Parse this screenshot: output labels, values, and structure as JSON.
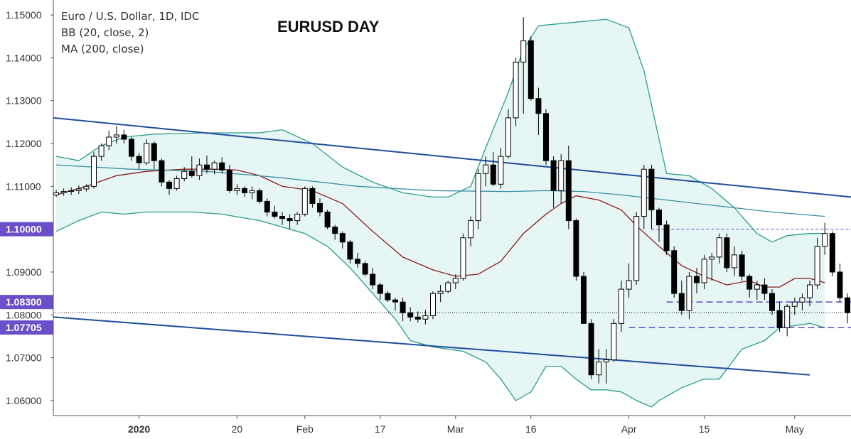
{
  "legend": {
    "symbol": "Euro / U.S. Dollar, 1D, IDC",
    "bb": "BB (20, close, 2)",
    "ma": "MA (200, close)"
  },
  "title": "EURUSD DAY",
  "colors": {
    "up_body": "#ffffff",
    "down_body": "#000000",
    "wick": "#000000",
    "bb_band": "#2a9d8f",
    "bb_fill": "#e6f6f4",
    "bb_basis": "#8b1a1a",
    "ma200": "#3a8fa8",
    "channel": "#1f4e9c",
    "level_line": "#5b4bc4",
    "badge": "#6a4fc8",
    "axis": "#555555"
  },
  "chart_data": {
    "type": "candlestick",
    "ylim": [
      1.0565,
      1.1535
    ],
    "y_ticks": [
      "1.15000",
      "1.14000",
      "1.13000",
      "1.12000",
      "1.11000",
      "1.10000",
      "1.09000",
      "1.08300",
      "1.08000",
      "1.07705",
      "1.07000",
      "1.06000"
    ],
    "highlighted_ticks": [
      "1.10000",
      "1.08300",
      "1.07705"
    ],
    "x_tick_labels": [
      {
        "label": "2020",
        "bar": 11,
        "bold": true
      },
      {
        "label": "20",
        "bar": 24
      },
      {
        "label": "Feb",
        "bar": 33
      },
      {
        "label": "17",
        "bar": 43
      },
      {
        "label": "Mar",
        "bar": 53
      },
      {
        "label": "16",
        "bar": 63
      },
      {
        "label": "Apr",
        "bar": 76
      },
      {
        "label": "15",
        "bar": 86
      },
      {
        "label": "May",
        "bar": 98
      }
    ],
    "candles": [
      [
        1.108,
        1.1092,
        1.1075,
        1.1085
      ],
      [
        1.1085,
        1.1095,
        1.1078,
        1.1088
      ],
      [
        1.1088,
        1.1098,
        1.108,
        1.109
      ],
      [
        1.109,
        1.1102,
        1.1082,
        1.1094
      ],
      [
        1.1094,
        1.1105,
        1.1088,
        1.11
      ],
      [
        1.11,
        1.118,
        1.1095,
        1.117
      ],
      [
        1.117,
        1.12,
        1.116,
        1.1195
      ],
      [
        1.1195,
        1.123,
        1.1185,
        1.1215
      ],
      [
        1.1215,
        1.124,
        1.12,
        1.122
      ],
      [
        1.122,
        1.1232,
        1.12,
        1.121
      ],
      [
        1.121,
        1.1215,
        1.116,
        1.117
      ],
      [
        1.117,
        1.1178,
        1.114,
        1.1155
      ],
      [
        1.1155,
        1.121,
        1.115,
        1.12
      ],
      [
        1.12,
        1.1205,
        1.114,
        1.116
      ],
      [
        1.116,
        1.1165,
        1.11,
        1.111
      ],
      [
        1.111,
        1.1115,
        1.108,
        1.1095
      ],
      [
        1.1095,
        1.1125,
        1.109,
        1.1118
      ],
      [
        1.1118,
        1.1145,
        1.1112,
        1.1135
      ],
      [
        1.1135,
        1.117,
        1.112,
        1.1125
      ],
      [
        1.1125,
        1.1165,
        1.1115,
        1.115
      ],
      [
        1.115,
        1.1172,
        1.113,
        1.114
      ],
      [
        1.114,
        1.116,
        1.1128,
        1.1155
      ],
      [
        1.1155,
        1.1168,
        1.113,
        1.1138
      ],
      [
        1.1138,
        1.115,
        1.1085,
        1.109
      ],
      [
        1.109,
        1.1105,
        1.108,
        1.1095
      ],
      [
        1.1095,
        1.11,
        1.1075,
        1.1085
      ],
      [
        1.1085,
        1.11,
        1.107,
        1.109
      ],
      [
        1.109,
        1.1095,
        1.106,
        1.1065
      ],
      [
        1.1065,
        1.1072,
        1.103,
        1.104
      ],
      [
        1.104,
        1.1055,
        1.1025,
        1.103
      ],
      [
        1.103,
        1.104,
        1.101,
        1.1025
      ],
      [
        1.1025,
        1.1035,
        1.1,
        1.102
      ],
      [
        1.102,
        1.104,
        1.101,
        1.1035
      ],
      [
        1.1035,
        1.11,
        1.103,
        1.1095
      ],
      [
        1.1095,
        1.11,
        1.105,
        1.106
      ],
      [
        1.106,
        1.1072,
        1.103,
        1.104
      ],
      [
        1.104,
        1.1045,
        1.1,
        1.1005
      ],
      [
        1.1005,
        1.101,
        1.0975,
        1.099
      ],
      [
        1.099,
        1.0995,
        1.0955,
        1.097
      ],
      [
        1.097,
        1.0975,
        1.092,
        1.093
      ],
      [
        1.093,
        1.0945,
        1.091,
        1.092
      ],
      [
        1.092,
        1.0925,
        1.089,
        1.0895
      ],
      [
        1.0895,
        1.091,
        1.086,
        1.087
      ],
      [
        1.087,
        1.0875,
        1.0835,
        1.085
      ],
      [
        1.085,
        1.0855,
        1.083,
        1.0835
      ],
      [
        1.0835,
        1.084,
        1.081,
        1.083
      ],
      [
        1.083,
        1.084,
        1.0785,
        1.0805
      ],
      [
        1.0805,
        1.0818,
        1.0785,
        1.0795
      ],
      [
        1.0795,
        1.0808,
        1.0782,
        1.079
      ],
      [
        1.079,
        1.0812,
        1.0778,
        1.0798
      ],
      [
        1.0798,
        1.0855,
        1.079,
        1.085
      ],
      [
        1.085,
        1.087,
        1.083,
        1.0855
      ],
      [
        1.0855,
        1.088,
        1.085,
        1.0875
      ],
      [
        1.0875,
        1.0895,
        1.086,
        1.0885
      ],
      [
        1.0885,
        1.099,
        1.088,
        1.098
      ],
      [
        1.098,
        1.103,
        1.096,
        1.102
      ],
      [
        1.102,
        1.114,
        1.1,
        1.113
      ],
      [
        1.113,
        1.117,
        1.11,
        1.115
      ],
      [
        1.115,
        1.118,
        1.11,
        1.1105
      ],
      [
        1.1105,
        1.119,
        1.1095,
        1.117
      ],
      [
        1.117,
        1.128,
        1.1165,
        1.126
      ],
      [
        1.126,
        1.14,
        1.124,
        1.139
      ],
      [
        1.139,
        1.1495,
        1.127,
        1.144
      ],
      [
        1.144,
        1.145,
        1.13,
        1.1305
      ],
      [
        1.1305,
        1.133,
        1.122,
        1.127
      ],
      [
        1.127,
        1.128,
        1.115,
        1.116
      ],
      [
        1.116,
        1.117,
        1.105,
        1.109
      ],
      [
        1.109,
        1.1175,
        1.106,
        1.116
      ],
      [
        1.116,
        1.1195,
        1.1,
        1.102
      ],
      [
        1.102,
        1.1025,
        1.088,
        1.089
      ],
      [
        1.089,
        1.09,
        1.078,
        1.078
      ],
      [
        1.078,
        1.079,
        1.065,
        1.066
      ],
      [
        1.066,
        1.072,
        1.064,
        1.069
      ],
      [
        1.069,
        1.072,
        1.064,
        1.0695
      ],
      [
        1.0695,
        1.079,
        1.069,
        1.078
      ],
      [
        1.078,
        1.088,
        1.076,
        1.086
      ],
      [
        1.086,
        1.092,
        1.084,
        1.088
      ],
      [
        1.088,
        1.104,
        1.087,
        1.103
      ],
      [
        1.103,
        1.115,
        1.1,
        1.114
      ],
      [
        1.114,
        1.115,
        1.1,
        1.1045
      ],
      [
        1.1045,
        1.105,
        1.097,
        1.101
      ],
      [
        1.101,
        1.102,
        1.094,
        1.095
      ],
      [
        1.095,
        1.096,
        1.084,
        1.085
      ],
      [
        1.085,
        1.088,
        1.08,
        1.081
      ],
      [
        1.081,
        1.09,
        1.079,
        1.089
      ],
      [
        1.089,
        1.091,
        1.085,
        1.0875
      ],
      [
        1.0875,
        1.094,
        1.086,
        1.093
      ],
      [
        1.093,
        1.0945,
        1.088,
        1.0935
      ],
      [
        1.0935,
        1.099,
        1.092,
        1.098
      ],
      [
        1.098,
        1.099,
        1.09,
        1.091
      ],
      [
        1.091,
        1.096,
        1.089,
        1.094
      ],
      [
        1.094,
        1.095,
        1.088,
        1.089
      ],
      [
        1.089,
        1.0895,
        1.084,
        1.086
      ],
      [
        1.086,
        1.088,
        1.0835,
        1.087
      ],
      [
        1.087,
        1.0885,
        1.0835,
        1.085
      ],
      [
        1.085,
        1.086,
        1.08,
        1.081
      ],
      [
        1.081,
        1.083,
        1.076,
        1.077
      ],
      [
        1.077,
        1.0825,
        1.075,
        1.082
      ],
      [
        1.082,
        1.084,
        1.08,
        1.083
      ],
      [
        1.083,
        1.085,
        1.081,
        1.084
      ],
      [
        1.084,
        1.088,
        1.082,
        1.087
      ],
      [
        1.087,
        1.098,
        1.086,
        1.096
      ],
      [
        1.096,
        1.1015,
        1.094,
        1.099
      ],
      [
        1.099,
        1.0995,
        1.089,
        1.09
      ],
      [
        1.09,
        1.092,
        1.083,
        1.084
      ],
      [
        1.084,
        1.085,
        1.078,
        1.0805
      ]
    ],
    "bb_upper": [
      [
        0,
        1.117
      ],
      [
        3,
        1.116
      ],
      [
        6,
        1.1195
      ],
      [
        9,
        1.1215
      ],
      [
        13,
        1.1222
      ],
      [
        20,
        1.1225
      ],
      [
        27,
        1.1225
      ],
      [
        30,
        1.1232
      ],
      [
        34,
        1.12
      ],
      [
        38,
        1.1145
      ],
      [
        42,
        1.111
      ],
      [
        46,
        1.1085
      ],
      [
        50,
        1.1075
      ],
      [
        52,
        1.1075
      ],
      [
        55,
        1.11
      ],
      [
        57,
        1.119
      ],
      [
        60,
        1.132
      ],
      [
        62,
        1.142
      ],
      [
        64,
        1.1475
      ],
      [
        67,
        1.148
      ],
      [
        70,
        1.1485
      ],
      [
        73,
        1.149
      ],
      [
        76,
        1.147
      ],
      [
        78,
        1.137
      ],
      [
        80,
        1.121
      ],
      [
        81,
        1.113
      ],
      [
        84,
        1.1125
      ],
      [
        87,
        1.1095
      ],
      [
        90,
        1.105
      ],
      [
        93,
        1.099
      ],
      [
        95,
        1.097
      ],
      [
        97,
        1.0985
      ],
      [
        100,
        1.099
      ],
      [
        102,
        1.099
      ]
    ],
    "bb_lower": [
      [
        0,
        1.0995
      ],
      [
        3,
        1.102
      ],
      [
        6,
        1.104
      ],
      [
        9,
        1.1035
      ],
      [
        12,
        1.104
      ],
      [
        18,
        1.104
      ],
      [
        22,
        1.1035
      ],
      [
        27,
        1.102
      ],
      [
        30,
        1.1005
      ],
      [
        33,
        1.099
      ],
      [
        36,
        1.096
      ],
      [
        39,
        1.091
      ],
      [
        42,
        1.085
      ],
      [
        45,
        1.079
      ],
      [
        47,
        1.074
      ],
      [
        50,
        1.0725
      ],
      [
        54,
        1.0715
      ],
      [
        57,
        1.069
      ],
      [
        59,
        1.065
      ],
      [
        61,
        1.06
      ],
      [
        63,
        1.062
      ],
      [
        65,
        1.068
      ],
      [
        67,
        1.068
      ],
      [
        69,
        1.065
      ],
      [
        71,
        1.0625
      ],
      [
        73,
        1.0625
      ],
      [
        75,
        1.062
      ],
      [
        77,
        1.06
      ],
      [
        79,
        1.0585
      ],
      [
        80,
        1.06
      ],
      [
        83,
        1.063
      ],
      [
        86,
        1.065
      ],
      [
        88,
        1.065
      ],
      [
        91,
        1.072
      ],
      [
        94,
        1.074
      ],
      [
        96,
        1.077
      ],
      [
        98,
        1.0775
      ],
      [
        100,
        1.078
      ],
      [
        102,
        1.077
      ]
    ],
    "bb_basis": [
      [
        0,
        1.108
      ],
      [
        4,
        1.11
      ],
      [
        8,
        1.1125
      ],
      [
        12,
        1.1135
      ],
      [
        17,
        1.114
      ],
      [
        21,
        1.114
      ],
      [
        24,
        1.1138
      ],
      [
        27,
        1.1125
      ],
      [
        30,
        1.11
      ],
      [
        34,
        1.109
      ],
      [
        38,
        1.106
      ],
      [
        42,
        1.0995
      ],
      [
        46,
        1.0935
      ],
      [
        50,
        1.0905
      ],
      [
        53,
        1.089
      ],
      [
        56,
        1.0895
      ],
      [
        59,
        1.0925
      ],
      [
        62,
        1.099
      ],
      [
        65,
        1.1035
      ],
      [
        67,
        1.106
      ],
      [
        69,
        1.1078
      ],
      [
        72,
        1.1068
      ],
      [
        75,
        1.1045
      ],
      [
        77,
        1.1008
      ],
      [
        80,
        1.096
      ],
      [
        83,
        1.0915
      ],
      [
        86,
        1.089
      ],
      [
        89,
        1.087
      ],
      [
        92,
        1.088
      ],
      [
        94,
        1.0865
      ],
      [
        96,
        1.0865
      ],
      [
        98,
        1.0885
      ],
      [
        100,
        1.0885
      ],
      [
        102,
        1.0875
      ]
    ],
    "ma200": [
      [
        0,
        1.115
      ],
      [
        10,
        1.114
      ],
      [
        20,
        1.1135
      ],
      [
        30,
        1.112
      ],
      [
        40,
        1.11
      ],
      [
        50,
        1.109
      ],
      [
        60,
        1.1088
      ],
      [
        65,
        1.109
      ],
      [
        70,
        1.1088
      ],
      [
        75,
        1.108
      ],
      [
        80,
        1.107
      ],
      [
        85,
        1.106
      ],
      [
        90,
        1.105
      ],
      [
        95,
        1.104
      ],
      [
        102,
        1.103
      ]
    ],
    "channel_upper": [
      [
        -3,
        1.126
      ],
      [
        112,
        1.1075
      ]
    ],
    "channel_lower": [
      [
        -3,
        1.0795
      ],
      [
        100,
        1.066
      ]
    ],
    "resistance_100": {
      "value": 1.1,
      "from_bar": 79
    },
    "level_083": {
      "value": 1.083,
      "from_bar": 81
    },
    "level_077": {
      "value": 1.07705,
      "from_bar": 76
    },
    "current_price": 1.0805
  }
}
